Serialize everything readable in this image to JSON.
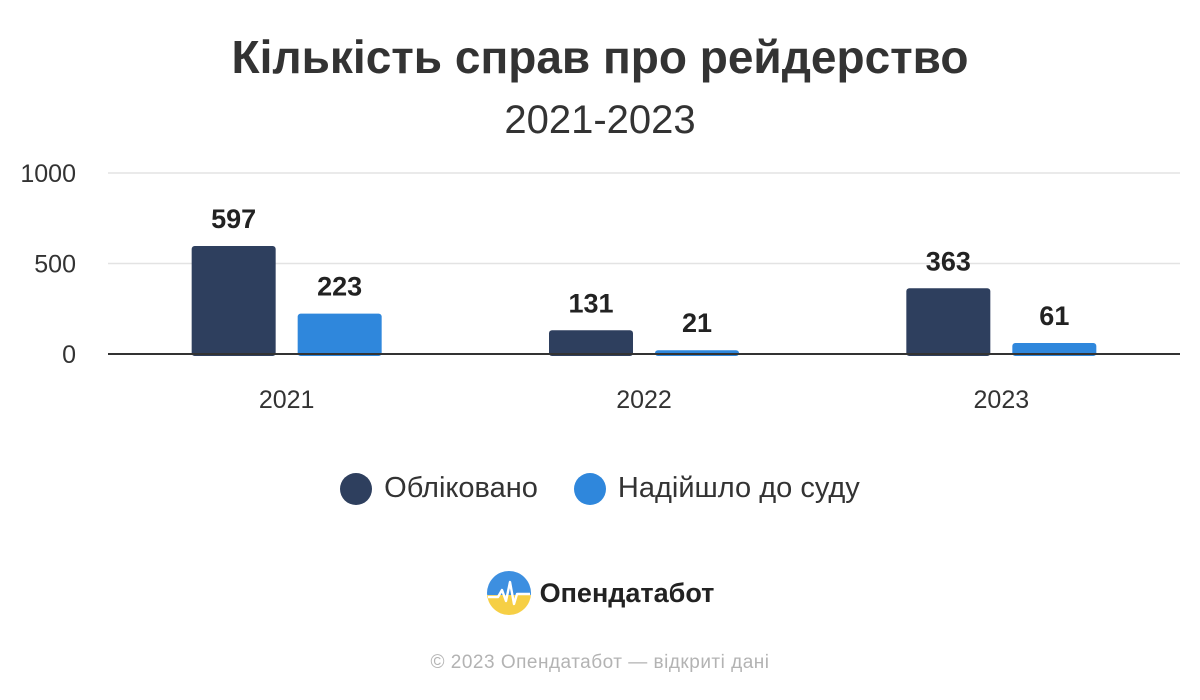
{
  "chart_data": {
    "type": "bar",
    "title": "Кількість справ про рейдерство",
    "subtitle": "2021-2023",
    "categories": [
      "2021",
      "2022",
      "2023"
    ],
    "series": [
      {
        "name": "Обліковано",
        "values": [
          597,
          131,
          363
        ],
        "color": "#2e3f5e"
      },
      {
        "name": "Надійшло до суду",
        "values": [
          223,
          21,
          61
        ],
        "color": "#2f87dc"
      }
    ],
    "y_ticks": [
      "0",
      "500",
      "1000"
    ],
    "ylim": [
      0,
      1000
    ],
    "grid": true,
    "legend_position": "bottom-center"
  },
  "brand": {
    "name": "Опендатабот",
    "icon": "opendatabot-logo-icon"
  },
  "footer": "© 2023 Опендатабот — відкриті дані"
}
